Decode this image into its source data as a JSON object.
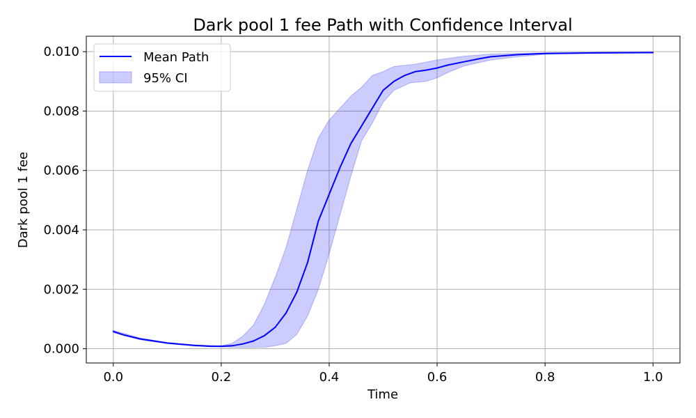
{
  "chart_data": {
    "type": "line",
    "title": "Dark pool 1 fee Path with Confidence Interval",
    "xlabel": "Time",
    "ylabel": "Dark pool 1 fee",
    "xlim": [
      -0.05,
      1.05
    ],
    "ylim": [
      -0.00048,
      0.01052
    ],
    "xticks": [
      "0.0",
      "0.2",
      "0.4",
      "0.6",
      "0.8",
      "1.0"
    ],
    "yticks": [
      "0.000",
      "0.002",
      "0.004",
      "0.006",
      "0.008",
      "0.010"
    ],
    "grid": true,
    "legend_position": "top-left",
    "series": [
      {
        "name": "Mean Path",
        "kind": "line",
        "color": "#0000ff",
        "points": [
          [
            0.0,
            0.00058
          ],
          [
            0.02,
            0.00046
          ],
          [
            0.05,
            0.00033
          ],
          [
            0.1,
            0.00019
          ],
          [
            0.15,
            0.00011
          ],
          [
            0.18,
            8e-05
          ],
          [
            0.2,
            8e-05
          ],
          [
            0.22,
            0.0001
          ],
          [
            0.24,
            0.00016
          ],
          [
            0.26,
            0.00026
          ],
          [
            0.28,
            0.00044
          ],
          [
            0.3,
            0.00072
          ],
          [
            0.32,
            0.0012
          ],
          [
            0.34,
            0.0019
          ],
          [
            0.36,
            0.0029
          ],
          [
            0.38,
            0.0043
          ],
          [
            0.4,
            0.0052
          ],
          [
            0.42,
            0.0061
          ],
          [
            0.44,
            0.0069
          ],
          [
            0.46,
            0.0075
          ],
          [
            0.48,
            0.0081
          ],
          [
            0.5,
            0.0087
          ],
          [
            0.52,
            0.009
          ],
          [
            0.54,
            0.0092
          ],
          [
            0.56,
            0.00933
          ],
          [
            0.58,
            0.00938
          ],
          [
            0.6,
            0.00945
          ],
          [
            0.62,
            0.00955
          ],
          [
            0.65,
            0.00966
          ],
          [
            0.68,
            0.00977
          ],
          [
            0.7,
            0.00983
          ],
          [
            0.75,
            0.0099
          ],
          [
            0.8,
            0.00994
          ],
          [
            0.9,
            0.00996
          ],
          [
            1.0,
            0.00997
          ]
        ]
      },
      {
        "name": "95% CI",
        "kind": "band",
        "color": "#0000ff",
        "opacity": 0.2,
        "upper": [
          [
            0.0,
            0.00062
          ],
          [
            0.05,
            0.00036
          ],
          [
            0.1,
            0.00021
          ],
          [
            0.15,
            0.00013
          ],
          [
            0.2,
            0.0001
          ],
          [
            0.22,
            0.00018
          ],
          [
            0.24,
            0.00042
          ],
          [
            0.26,
            0.0008
          ],
          [
            0.28,
            0.0015
          ],
          [
            0.3,
            0.0024
          ],
          [
            0.32,
            0.0034
          ],
          [
            0.34,
            0.0047
          ],
          [
            0.36,
            0.006
          ],
          [
            0.38,
            0.0071
          ],
          [
            0.4,
            0.0077
          ],
          [
            0.42,
            0.0081
          ],
          [
            0.44,
            0.0085
          ],
          [
            0.46,
            0.0088
          ],
          [
            0.48,
            0.0092
          ],
          [
            0.5,
            0.00933
          ],
          [
            0.52,
            0.0095
          ],
          [
            0.56,
            0.00958
          ],
          [
            0.6,
            0.00972
          ],
          [
            0.65,
            0.00985
          ],
          [
            0.7,
            0.00992
          ],
          [
            0.8,
            0.00996
          ],
          [
            0.9,
            0.00998
          ],
          [
            1.0,
            0.00999
          ]
        ],
        "lower": [
          [
            0.0,
            0.00054
          ],
          [
            0.05,
            0.0003
          ],
          [
            0.1,
            0.00017
          ],
          [
            0.15,
            9e-05
          ],
          [
            0.2,
            6e-05
          ],
          [
            0.24,
            4e-05
          ],
          [
            0.28,
            5e-05
          ],
          [
            0.3,
            0.0001
          ],
          [
            0.32,
            0.00018
          ],
          [
            0.34,
            0.00048
          ],
          [
            0.36,
            0.0011
          ],
          [
            0.38,
            0.002
          ],
          [
            0.4,
            0.0032
          ],
          [
            0.42,
            0.0045
          ],
          [
            0.44,
            0.0058
          ],
          [
            0.46,
            0.007
          ],
          [
            0.48,
            0.0076
          ],
          [
            0.5,
            0.0083
          ],
          [
            0.52,
            0.0087
          ],
          [
            0.55,
            0.00895
          ],
          [
            0.58,
            0.009
          ],
          [
            0.6,
            0.00912
          ],
          [
            0.62,
            0.0093
          ],
          [
            0.65,
            0.00952
          ],
          [
            0.7,
            0.00972
          ],
          [
            0.75,
            0.00983
          ],
          [
            0.8,
            0.00991
          ],
          [
            0.9,
            0.00995
          ],
          [
            1.0,
            0.00996
          ]
        ]
      }
    ]
  }
}
